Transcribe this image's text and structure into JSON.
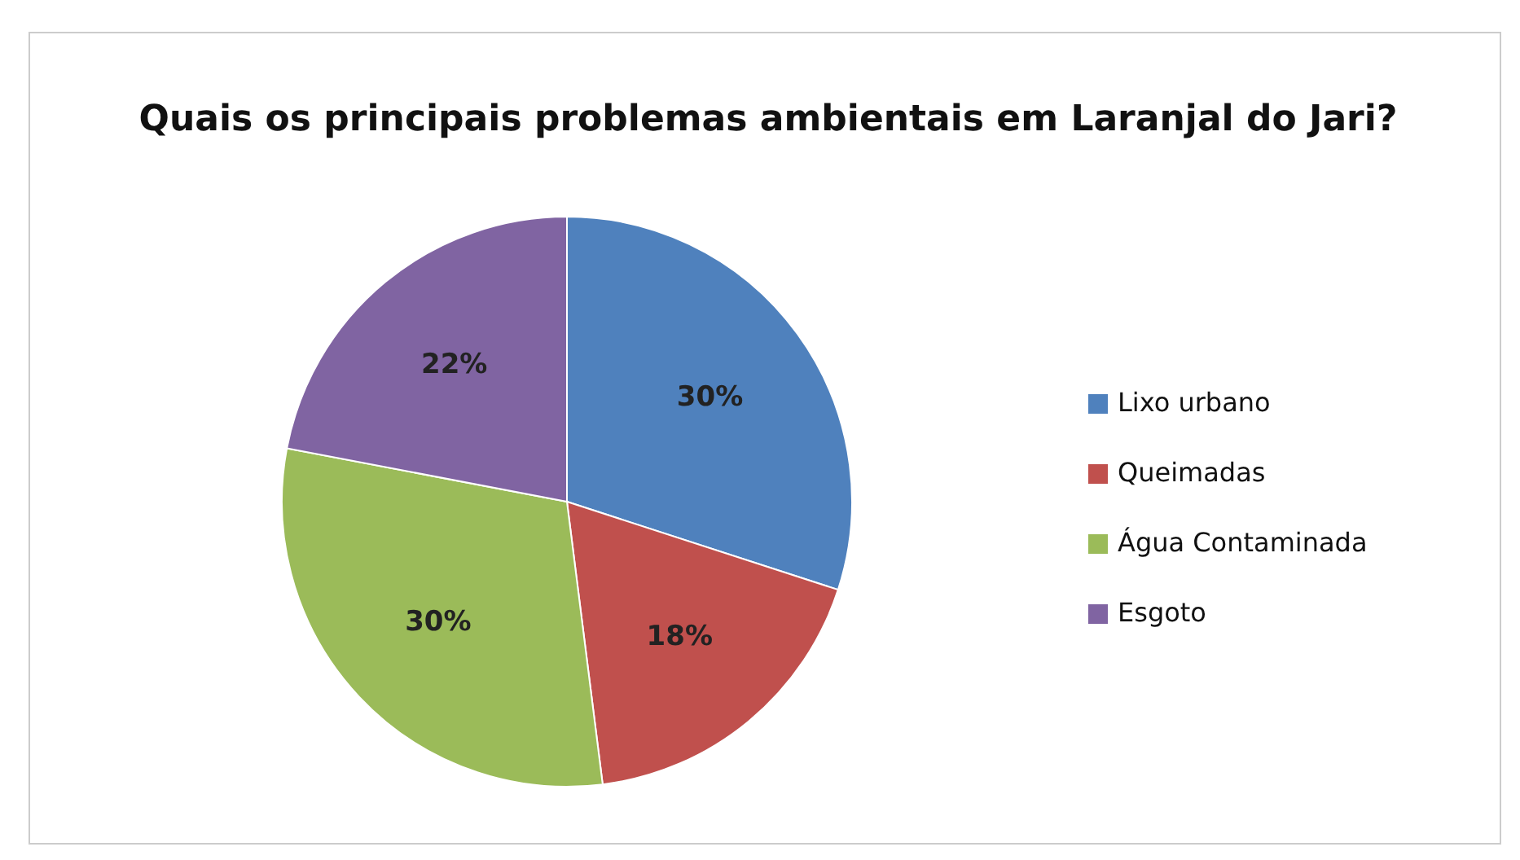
{
  "chart_data": {
    "type": "pie",
    "title": "Quais os principais problemas ambientais em Laranjal do Jari?",
    "categories": [
      "Lixo urbano",
      "Queimadas",
      "Água Contaminada",
      "Esgoto"
    ],
    "values": [
      30,
      18,
      30,
      22
    ],
    "colors": [
      "#4f81bd",
      "#c0504d",
      "#9bbb59",
      "#8064a2"
    ],
    "value_labels": [
      "30%",
      "18%",
      "30%",
      "22%"
    ],
    "legend": "right"
  }
}
